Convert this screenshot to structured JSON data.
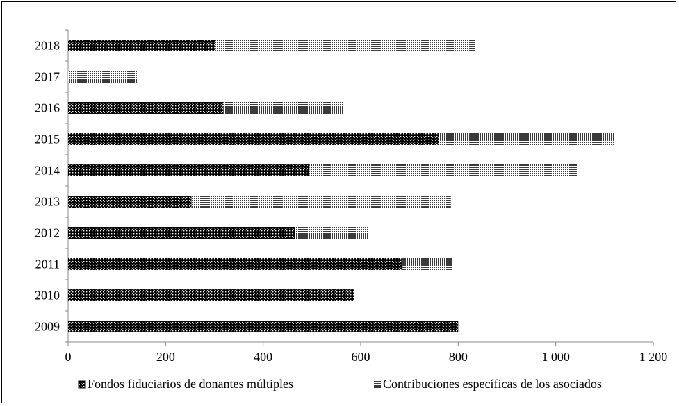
{
  "chart_data": {
    "type": "bar",
    "orientation": "horizontal",
    "stacked": true,
    "categories": [
      "2009",
      "2010",
      "2011",
      "2012",
      "2013",
      "2014",
      "2015",
      "2016",
      "2017",
      "2018"
    ],
    "series": [
      {
        "name": "Fondos fiduciarios de donantes múltiples",
        "values": [
          800,
          587,
          686,
          465,
          253,
          495,
          760,
          318,
          0,
          302
        ],
        "color": "#000000",
        "pattern": "white-dots"
      },
      {
        "name": "Contribuciones específicas de los asociados",
        "values": [
          0,
          0,
          102,
          150,
          532,
          550,
          360,
          245,
          142,
          532
        ],
        "color": "#555555",
        "pattern": "fine-grid"
      }
    ],
    "x_ticks": [
      "0",
      "200",
      "400",
      "600",
      "800",
      "1 000",
      "1 200"
    ],
    "xlim": [
      0,
      1200
    ],
    "grid": false,
    "legend_position": "bottom"
  }
}
